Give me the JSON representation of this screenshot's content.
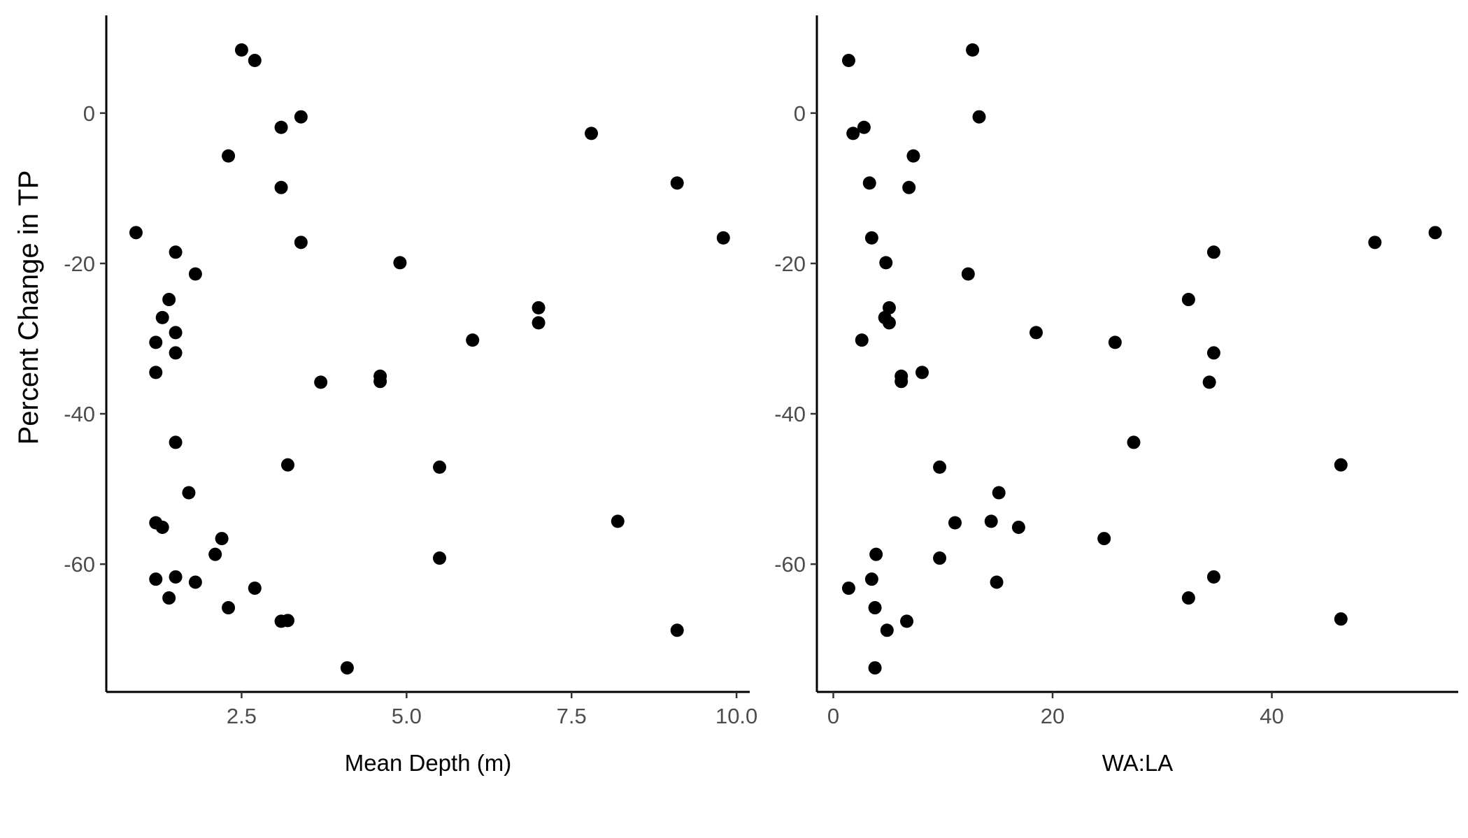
{
  "shared_ylabel": "Percent Change in TP",
  "chart_data": [
    {
      "type": "scatter",
      "title": "",
      "xlabel": "Mean Depth (m)",
      "ylabel": "Percent Change in TP",
      "xlim": [
        0.45,
        10.2
      ],
      "ylim": [
        -77,
        13
      ],
      "x_ticks": [
        2.5,
        5.0,
        7.5,
        10.0
      ],
      "x_tick_labels": [
        "2.5",
        "5.0",
        "7.5",
        "10.0"
      ],
      "y_ticks": [
        0,
        -20,
        -40,
        -60
      ],
      "y_tick_labels": [
        "0",
        "-20",
        "-40",
        "-60"
      ],
      "grid": false,
      "legend": "none",
      "point_color": "#000000",
      "points": [
        {
          "x": 2.5,
          "y": 8.4
        },
        {
          "x": 2.7,
          "y": 7.0
        },
        {
          "x": 3.1,
          "y": -1.9
        },
        {
          "x": 3.4,
          "y": -0.5
        },
        {
          "x": 2.3,
          "y": -5.7
        },
        {
          "x": 3.1,
          "y": -9.9
        },
        {
          "x": 7.8,
          "y": -2.7
        },
        {
          "x": 9.1,
          "y": -9.3
        },
        {
          "x": 0.9,
          "y": -15.9
        },
        {
          "x": 3.4,
          "y": -17.2
        },
        {
          "x": 9.8,
          "y": -16.6
        },
        {
          "x": 1.5,
          "y": -18.5
        },
        {
          "x": 4.9,
          "y": -19.9
        },
        {
          "x": 1.8,
          "y": -21.4
        },
        {
          "x": 1.4,
          "y": -24.8
        },
        {
          "x": 7.0,
          "y": -25.9
        },
        {
          "x": 1.3,
          "y": -27.2
        },
        {
          "x": 7.0,
          "y": -27.9
        },
        {
          "x": 1.5,
          "y": -29.2
        },
        {
          "x": 1.2,
          "y": -30.5
        },
        {
          "x": 6.0,
          "y": -30.2
        },
        {
          "x": 1.5,
          "y": -31.9
        },
        {
          "x": 1.2,
          "y": -34.5
        },
        {
          "x": 4.6,
          "y": -35.0
        },
        {
          "x": 3.7,
          "y": -35.8
        },
        {
          "x": 4.6,
          "y": -35.7
        },
        {
          "x": 1.5,
          "y": -43.8
        },
        {
          "x": 3.2,
          "y": -46.8
        },
        {
          "x": 5.5,
          "y": -47.1
        },
        {
          "x": 1.7,
          "y": -50.5
        },
        {
          "x": 1.2,
          "y": -54.5
        },
        {
          "x": 1.3,
          "y": -55.1
        },
        {
          "x": 8.2,
          "y": -54.3
        },
        {
          "x": 2.2,
          "y": -56.6
        },
        {
          "x": 2.1,
          "y": -58.7
        },
        {
          "x": 5.5,
          "y": -59.2
        },
        {
          "x": 1.2,
          "y": -62.0
        },
        {
          "x": 1.5,
          "y": -61.7
        },
        {
          "x": 1.8,
          "y": -62.4
        },
        {
          "x": 2.7,
          "y": -63.2
        },
        {
          "x": 1.4,
          "y": -64.5
        },
        {
          "x": 2.3,
          "y": -65.8
        },
        {
          "x": 3.1,
          "y": -67.6
        },
        {
          "x": 3.2,
          "y": -67.5
        },
        {
          "x": 9.1,
          "y": -68.8
        },
        {
          "x": 4.1,
          "y": -73.8
        }
      ]
    },
    {
      "type": "scatter",
      "title": "",
      "xlabel": "WA:LA",
      "ylabel": "",
      "xlim": [
        -1.5,
        57
      ],
      "ylim": [
        -77,
        13
      ],
      "x_ticks": [
        0,
        20,
        40
      ],
      "x_tick_labels": [
        "0",
        "20",
        "40"
      ],
      "y_ticks": [
        0,
        -20,
        -40,
        -60
      ],
      "y_tick_labels": [
        "0",
        "-20",
        "-40",
        "-60"
      ],
      "grid": false,
      "legend": "none",
      "point_color": "#000000",
      "points": [
        {
          "x": 1.4,
          "y": 7.0
        },
        {
          "x": 12.7,
          "y": 8.4
        },
        {
          "x": 13.3,
          "y": -0.5
        },
        {
          "x": 1.8,
          "y": -2.7
        },
        {
          "x": 2.8,
          "y": -1.9
        },
        {
          "x": 7.3,
          "y": -5.7
        },
        {
          "x": 3.3,
          "y": -9.3
        },
        {
          "x": 6.9,
          "y": -9.9
        },
        {
          "x": 3.5,
          "y": -16.6
        },
        {
          "x": 54.9,
          "y": -15.9
        },
        {
          "x": 49.4,
          "y": -17.2
        },
        {
          "x": 34.7,
          "y": -18.5
        },
        {
          "x": 4.8,
          "y": -19.9
        },
        {
          "x": 12.3,
          "y": -21.4
        },
        {
          "x": 32.4,
          "y": -24.8
        },
        {
          "x": 5.1,
          "y": -25.9
        },
        {
          "x": 4.7,
          "y": -27.2
        },
        {
          "x": 5.1,
          "y": -27.9
        },
        {
          "x": 18.5,
          "y": -29.2
        },
        {
          "x": 2.6,
          "y": -30.2
        },
        {
          "x": 25.7,
          "y": -30.5
        },
        {
          "x": 34.7,
          "y": -31.9
        },
        {
          "x": 8.1,
          "y": -34.5
        },
        {
          "x": 6.2,
          "y": -35.0
        },
        {
          "x": 6.2,
          "y": -35.7
        },
        {
          "x": 34.3,
          "y": -35.8
        },
        {
          "x": 27.4,
          "y": -43.8
        },
        {
          "x": 46.3,
          "y": -46.8
        },
        {
          "x": 9.7,
          "y": -47.1
        },
        {
          "x": 15.1,
          "y": -50.5
        },
        {
          "x": 11.1,
          "y": -54.5
        },
        {
          "x": 14.4,
          "y": -54.3
        },
        {
          "x": 16.9,
          "y": -55.1
        },
        {
          "x": 24.7,
          "y": -56.6
        },
        {
          "x": 3.9,
          "y": -58.7
        },
        {
          "x": 9.7,
          "y": -59.2
        },
        {
          "x": 3.5,
          "y": -62.0
        },
        {
          "x": 34.7,
          "y": -61.7
        },
        {
          "x": 14.9,
          "y": -62.4
        },
        {
          "x": 1.4,
          "y": -63.2
        },
        {
          "x": 32.4,
          "y": -64.5
        },
        {
          "x": 3.8,
          "y": -65.8
        },
        {
          "x": 46.3,
          "y": -67.3
        },
        {
          "x": 6.7,
          "y": -67.6
        },
        {
          "x": 4.9,
          "y": -68.8
        },
        {
          "x": 3.8,
          "y": -73.8
        }
      ]
    }
  ]
}
